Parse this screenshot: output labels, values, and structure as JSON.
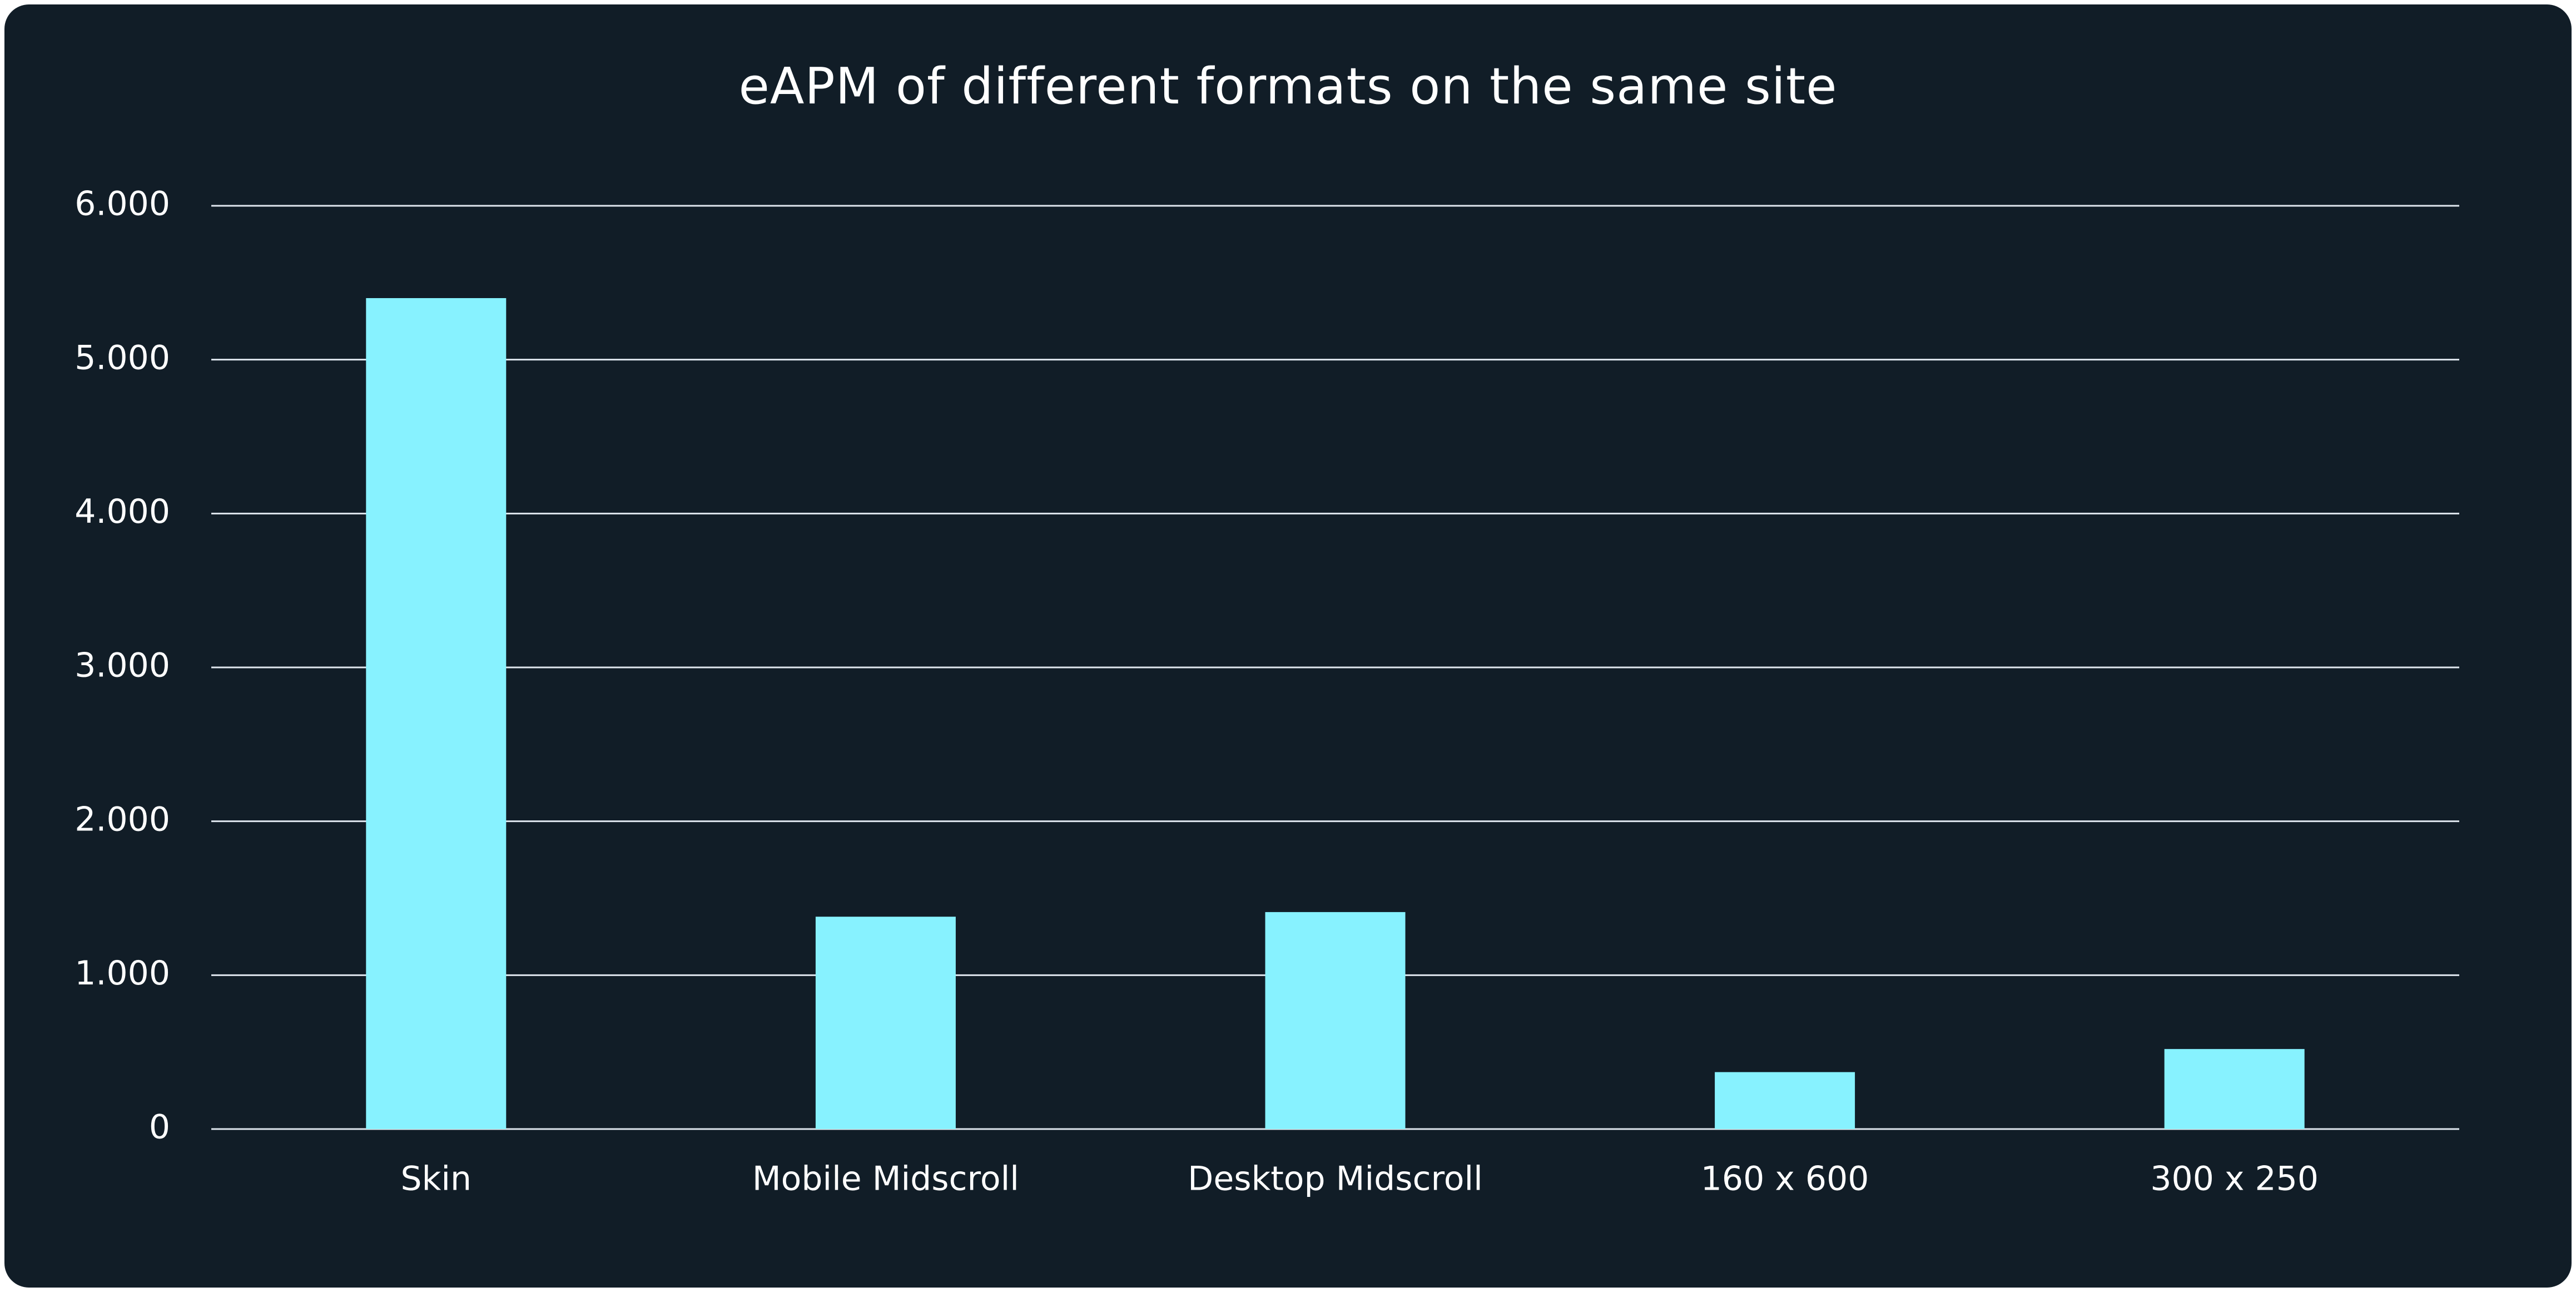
{
  "colors": {
    "background": "#111d27",
    "bar": "#87f2ff",
    "gridline": "#dfe6ee",
    "text": "#ffffff"
  },
  "chart_data": {
    "type": "bar",
    "title": "eAPM of different formats on the same site",
    "xlabel": "",
    "ylabel": "",
    "categories": [
      "Skin",
      "Mobile Midscroll",
      "Desktop Midscroll",
      "160 x 600",
      "300 x 250"
    ],
    "values": [
      5400,
      1380,
      1410,
      370,
      520
    ],
    "ylim": [
      0,
      6000
    ],
    "yticks": [
      0,
      1000,
      2000,
      3000,
      4000,
      5000,
      6000
    ],
    "ytick_labels": [
      "0",
      "1.000",
      "2.000",
      "3.000",
      "4.000",
      "5.000",
      "6.000"
    ],
    "grid": true,
    "legend": "none"
  }
}
